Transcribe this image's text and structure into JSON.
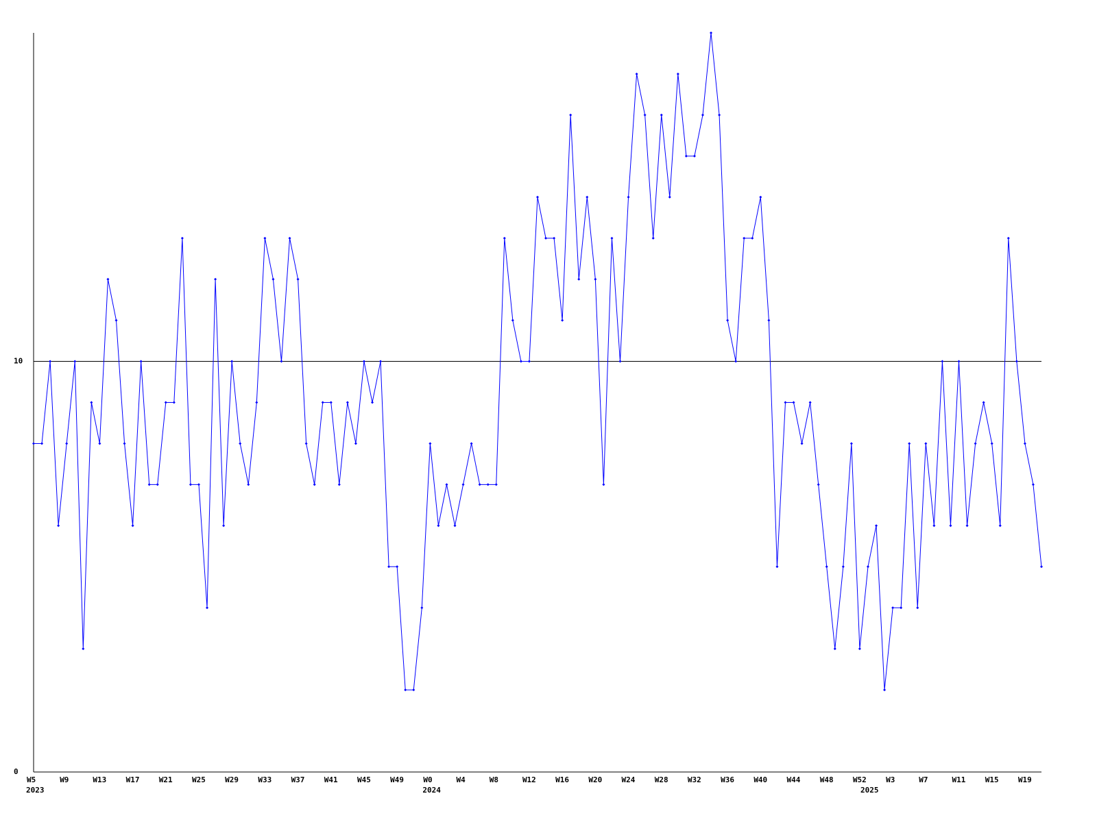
{
  "chart_data": {
    "type": "line",
    "categories": [
      "W5",
      null,
      null,
      null,
      "W9",
      null,
      null,
      null,
      "W13",
      null,
      null,
      null,
      "W17",
      null,
      null,
      null,
      "W21",
      null,
      null,
      null,
      "W25",
      null,
      null,
      null,
      "W29",
      null,
      null,
      null,
      "W33",
      null,
      null,
      null,
      "W37",
      null,
      null,
      null,
      "W41",
      null,
      null,
      null,
      "W45",
      null,
      null,
      null,
      "W49",
      null,
      null,
      null,
      "W0",
      null,
      null,
      null,
      "W4",
      null,
      null,
      null,
      "W8",
      null,
      null,
      null,
      "W12",
      null,
      null,
      null,
      "W16",
      null,
      null,
      null,
      "W20",
      null,
      null,
      null,
      "W24",
      null,
      null,
      null,
      "W28",
      null,
      null,
      null,
      "W32",
      null,
      null,
      null,
      "W36",
      null,
      null,
      null,
      "W40",
      null,
      null,
      null,
      "W44",
      null,
      null,
      null,
      "W48",
      null,
      null,
      null,
      "W52",
      null,
      null,
      null,
      "W3",
      null,
      null,
      null,
      "W7",
      null,
      null,
      null,
      "W11",
      null,
      null,
      null,
      "W15",
      null,
      null,
      null,
      "W19",
      null,
      null
    ],
    "x_group_labels": [
      "2023",
      null,
      null,
      null,
      null,
      null,
      null,
      null,
      null,
      null,
      null,
      null,
      null,
      null,
      null,
      null,
      null,
      null,
      null,
      null,
      null,
      null,
      null,
      null,
      null,
      null,
      null,
      null,
      null,
      null,
      null,
      null,
      null,
      null,
      null,
      null,
      null,
      null,
      null,
      null,
      null,
      null,
      null,
      null,
      null,
      null,
      null,
      null,
      "2024",
      null,
      null,
      null,
      null,
      null,
      null,
      null,
      null,
      null,
      null,
      null,
      null,
      null,
      null,
      null,
      null,
      null,
      null,
      null,
      null,
      null,
      null,
      null,
      null,
      null,
      null,
      null,
      null,
      null,
      null,
      null,
      null,
      null,
      null,
      null,
      null,
      null,
      null,
      null,
      null,
      null,
      null,
      null,
      null,
      null,
      null,
      null,
      null,
      null,
      null,
      null,
      null,
      "2025",
      null,
      null,
      null,
      null,
      null,
      null,
      null,
      null,
      null,
      null,
      null,
      null,
      null,
      null,
      null,
      null,
      null,
      null,
      null,
      null,
      null
    ],
    "values": [
      8,
      8,
      10,
      6,
      8,
      10,
      3,
      9,
      8,
      12,
      11,
      8,
      6,
      10,
      7,
      7,
      9,
      9,
      13,
      7,
      7,
      4,
      12,
      6,
      10,
      8,
      7,
      9,
      13,
      12,
      10,
      13,
      12,
      8,
      7,
      9,
      9,
      7,
      9,
      8,
      10,
      9,
      10,
      5,
      5,
      2,
      2,
      4,
      8,
      6,
      7,
      6,
      7,
      8,
      7,
      7,
      7,
      13,
      11,
      10,
      10,
      14,
      13,
      13,
      11,
      16,
      12,
      14,
      12,
      7,
      13,
      10,
      14,
      17,
      16,
      13,
      16,
      14,
      17,
      15,
      15,
      16,
      18,
      16,
      11,
      10,
      13,
      13,
      14,
      11,
      5,
      9,
      9,
      8,
      9,
      7,
      5,
      3,
      5,
      8,
      3,
      5,
      6,
      2,
      4,
      4,
      8,
      4,
      8,
      6,
      10,
      6,
      10,
      6,
      8,
      9,
      8,
      6,
      13,
      10,
      8,
      7,
      5
    ],
    "color": "#0000ff",
    "ylim": [
      0,
      18
    ],
    "yticks": [
      0,
      10
    ],
    "grid": true
  }
}
